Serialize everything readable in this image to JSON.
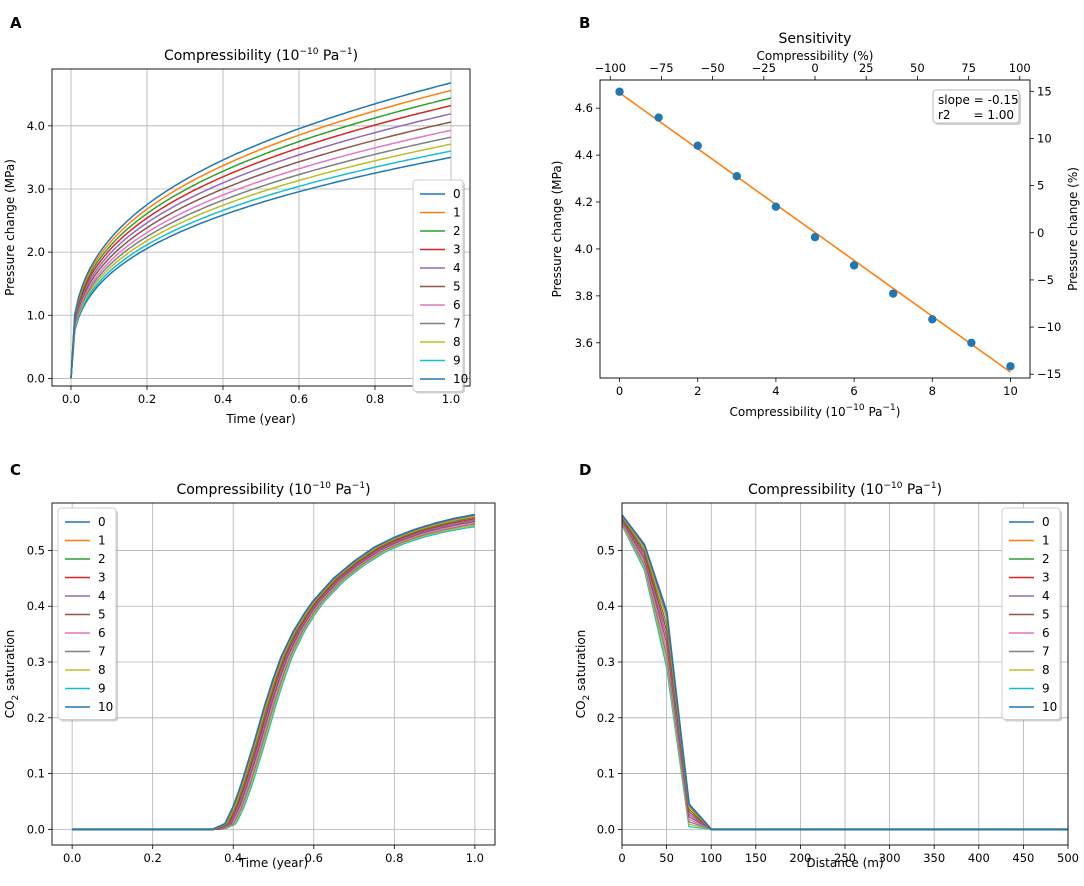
{
  "panel_labels": [
    "A",
    "B",
    "C",
    "D"
  ],
  "series_labels": [
    "0",
    "1",
    "2",
    "3",
    "4",
    "5",
    "6",
    "7",
    "8",
    "9",
    "10"
  ],
  "series_colors": [
    "#1f77b4",
    "#ff7f0e",
    "#2ca02c",
    "#d62728",
    "#9467bd",
    "#8c564b",
    "#e377c2",
    "#7f7f7f",
    "#bcbd22",
    "#17becf",
    "#1f77b4"
  ],
  "chart_data": [
    {
      "panel": "A",
      "type": "line",
      "title_main": "Compressibility (10",
      "title_sup": "−10",
      "title_mid": " Pa",
      "title_sup2": "−1",
      "title_end": ")",
      "xlabel": "Time (year)",
      "ylabel": "Pressure change (MPa)",
      "xlim": [
        -0.05,
        1.05
      ],
      "ylim": [
        -0.12,
        4.9
      ],
      "xticks": [
        0.0,
        0.2,
        0.4,
        0.6,
        0.8,
        1.0
      ],
      "xtick_labels": [
        "0.0",
        "0.2",
        "0.4",
        "0.6",
        "0.8",
        "1.0"
      ],
      "yticks": [
        0,
        1,
        2,
        3,
        4
      ],
      "ytick_labels": [
        "0.0",
        "1.0",
        "2.0",
        "3.0",
        "4.0"
      ],
      "grid": true,
      "legend": "right",
      "series_final_values": [
        4.68,
        4.56,
        4.44,
        4.32,
        4.19,
        4.06,
        3.93,
        3.82,
        3.71,
        3.6,
        3.5
      ],
      "curve_model": "p(t) = final * t^0.33"
    },
    {
      "panel": "B",
      "type": "scatter",
      "title": "Sensitivity",
      "top_xlabel": "Compressibility (%)",
      "xlabel_main": "Compressibility (10",
      "xlabel_sup": "−10",
      "xlabel_mid": " Pa",
      "xlabel_sup2": "−1",
      "xlabel_end": ")",
      "ylabel": "Pressure change (MPa)",
      "ylabel_right": "Pressure change (%)",
      "xlim": [
        -0.5,
        10.5
      ],
      "ylim": [
        3.45,
        4.72
      ],
      "xticks": [
        0,
        2,
        4,
        6,
        8,
        10
      ],
      "xtick_labels": [
        "0",
        "2",
        "4",
        "6",
        "8",
        "10"
      ],
      "yticks": [
        3.6,
        3.8,
        4.0,
        4.2,
        4.4,
        4.6
      ],
      "ytick_labels": [
        "3.6",
        "3.8",
        "4.0",
        "4.2",
        "4.4",
        "4.6"
      ],
      "top_ticks": [
        -100,
        -75,
        -50,
        -25,
        0,
        25,
        50,
        75,
        100
      ],
      "top_tick_labels": [
        "−100",
        "−75",
        "−50",
        "−25",
        "0",
        "25",
        "50",
        "75",
        "100"
      ],
      "right_lim": [
        -15.4,
        16.2
      ],
      "right_ticks": [
        15,
        10,
        5,
        0,
        -5,
        -10,
        -15
      ],
      "right_tick_labels": [
        "15",
        "10",
        "5",
        "0",
        "−5",
        "−10",
        "−15"
      ],
      "x": [
        0,
        1,
        2,
        3,
        4,
        5,
        6,
        7,
        8,
        9,
        10
      ],
      "y": [
        4.67,
        4.56,
        4.44,
        4.31,
        4.18,
        4.05,
        3.93,
        3.81,
        3.7,
        3.6,
        3.5
      ],
      "fit_line": {
        "x": [
          0,
          10
        ],
        "y": [
          4.665,
          3.475
        ]
      },
      "annotation_line1": "slope = -0.15",
      "annotation_line2": "r2      = 1.00",
      "grid": false
    },
    {
      "panel": "C",
      "type": "line",
      "title_main": "Compressibility (10",
      "title_sup": "−10",
      "title_mid": " Pa",
      "title_sup2": "−1",
      "title_end": ")",
      "xlabel": "Time (year)",
      "ylabel_main": "CO",
      "ylabel_sub": "2",
      "ylabel_end": " saturation",
      "xlim": [
        -0.05,
        1.05
      ],
      "ylim": [
        -0.028,
        0.585
      ],
      "xticks": [
        0.0,
        0.2,
        0.4,
        0.6,
        0.8,
        1.0
      ],
      "xtick_labels": [
        "0.0",
        "0.2",
        "0.4",
        "0.6",
        "0.8",
        "1.0"
      ],
      "yticks": [
        0.0,
        0.1,
        0.2,
        0.3,
        0.4,
        0.5
      ],
      "ytick_labels": [
        "0.0",
        "0.1",
        "0.2",
        "0.3",
        "0.4",
        "0.5"
      ],
      "grid": true,
      "legend": "upper-left",
      "curve_points_t": [
        0.0,
        0.35,
        0.38,
        0.4,
        0.42,
        0.45,
        0.48,
        0.5,
        0.52,
        0.55,
        0.58,
        0.6,
        0.65,
        0.7,
        0.75,
        0.8,
        0.85,
        0.9,
        0.95,
        1.0
      ],
      "curve_points_s": [
        0.0,
        0.0,
        0.01,
        0.04,
        0.08,
        0.15,
        0.225,
        0.27,
        0.31,
        0.355,
        0.39,
        0.41,
        0.45,
        0.48,
        0.505,
        0.523,
        0.537,
        0.548,
        0.557,
        0.564
      ],
      "series_time_shift": [
        0.0,
        0.003,
        0.006,
        0.009,
        0.012,
        0.015,
        0.018,
        0.021,
        0.024,
        0.027,
        0.0
      ],
      "series_final_drop": [
        0.0,
        0.002,
        0.004,
        0.006,
        0.008,
        0.01,
        0.012,
        0.014,
        0.016,
        0.018,
        0.0
      ]
    },
    {
      "panel": "D",
      "type": "line",
      "title_main": "Compressibility (10",
      "title_sup": "−10",
      "title_mid": " Pa",
      "title_sup2": "−1",
      "title_end": ")",
      "xlabel": "Distance (m)",
      "ylabel_main": "CO",
      "ylabel_sub": "2",
      "ylabel_end": " saturation",
      "xlim": [
        0,
        500
      ],
      "ylim": [
        -0.028,
        0.585
      ],
      "xticks": [
        0,
        50,
        100,
        150,
        200,
        250,
        300,
        350,
        400,
        450,
        500
      ],
      "xtick_labels": [
        "0",
        "50",
        "100",
        "150",
        "200",
        "250",
        "300",
        "350",
        "400",
        "450",
        "500"
      ],
      "yticks": [
        0.0,
        0.1,
        0.2,
        0.3,
        0.4,
        0.5
      ],
      "ytick_labels": [
        "0.0",
        "0.1",
        "0.2",
        "0.3",
        "0.4",
        "0.5"
      ],
      "grid": true,
      "legend": "upper-right",
      "x": [
        0,
        25,
        50,
        75,
        100,
        125,
        500
      ],
      "series_first": [
        0.563,
        0.51,
        0.39,
        0.045,
        0.0,
        0.0,
        0.0
      ],
      "series_last": [
        0.545,
        0.465,
        0.29,
        0.005,
        0.0,
        0.0,
        0.0
      ]
    }
  ]
}
